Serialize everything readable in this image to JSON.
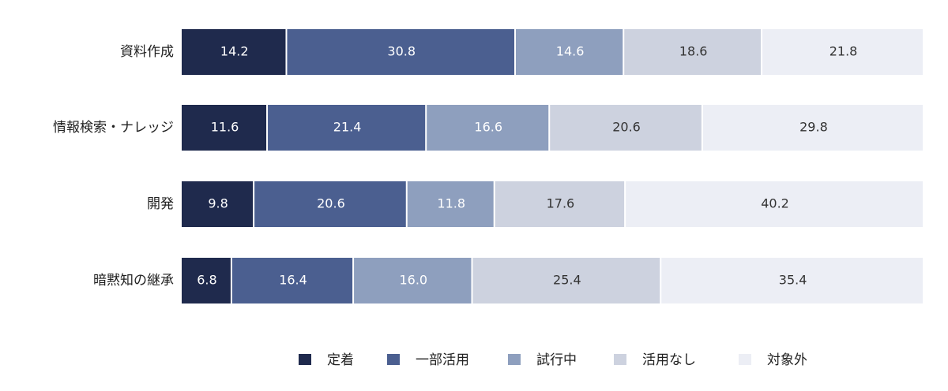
{
  "chart_data": {
    "type": "stacked-bar-horizontal",
    "categories": [
      "資料作成",
      "情報検索・ナレッジ",
      "開発",
      "暗黙知の継承"
    ],
    "series": [
      {
        "name": "定着",
        "color": "#1f2a4d",
        "values": [
          14.2,
          11.6,
          9.8,
          6.8
        ]
      },
      {
        "name": "一部活用",
        "color": "#4b5f90",
        "values": [
          30.8,
          21.4,
          20.6,
          16.4
        ]
      },
      {
        "name": "試行中",
        "color": "#8e9fbe",
        "values": [
          14.6,
          16.6,
          11.8,
          16
        ],
        "value_labels": [
          "14.6",
          "16.6",
          "11.8",
          "16.0"
        ]
      },
      {
        "name": "活用なし",
        "color": "#cdd2df",
        "values": [
          18.6,
          20.6,
          17.6,
          25.4
        ]
      },
      {
        "name": "対象外",
        "color": "#eceef5",
        "values": [
          21.8,
          29.8,
          40.2,
          35.4
        ]
      }
    ],
    "legend": "bottom"
  }
}
